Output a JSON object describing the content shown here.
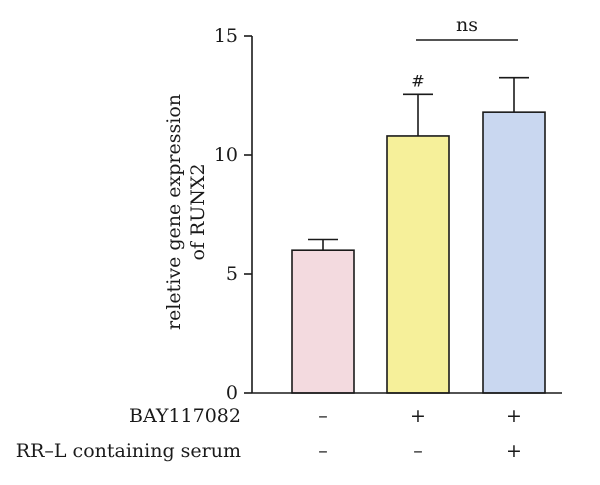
{
  "chart_data": {
    "type": "bar",
    "ylabel_lines": [
      "reletive gene expression",
      "of RUNX2"
    ],
    "ylim": [
      0,
      15
    ],
    "yticks": [
      0,
      5,
      10,
      15
    ],
    "bars": [
      {
        "value": 6.0,
        "error": 0.45,
        "color": "#f3dadf",
        "annotation": ""
      },
      {
        "value": 10.8,
        "error": 1.75,
        "color": "#f6f09a",
        "annotation": "#"
      },
      {
        "value": 11.8,
        "error": 1.45,
        "color": "#c9d7f0",
        "annotation": ""
      }
    ],
    "conditions": [
      {
        "label": "BAY117082",
        "marks": [
          "–",
          "+",
          "+"
        ]
      },
      {
        "label": "RR–L containing serum",
        "marks": [
          "–",
          "–",
          "+"
        ]
      }
    ],
    "comparison": {
      "from": 1,
      "to": 2,
      "label": "ns"
    },
    "grid": false
  }
}
